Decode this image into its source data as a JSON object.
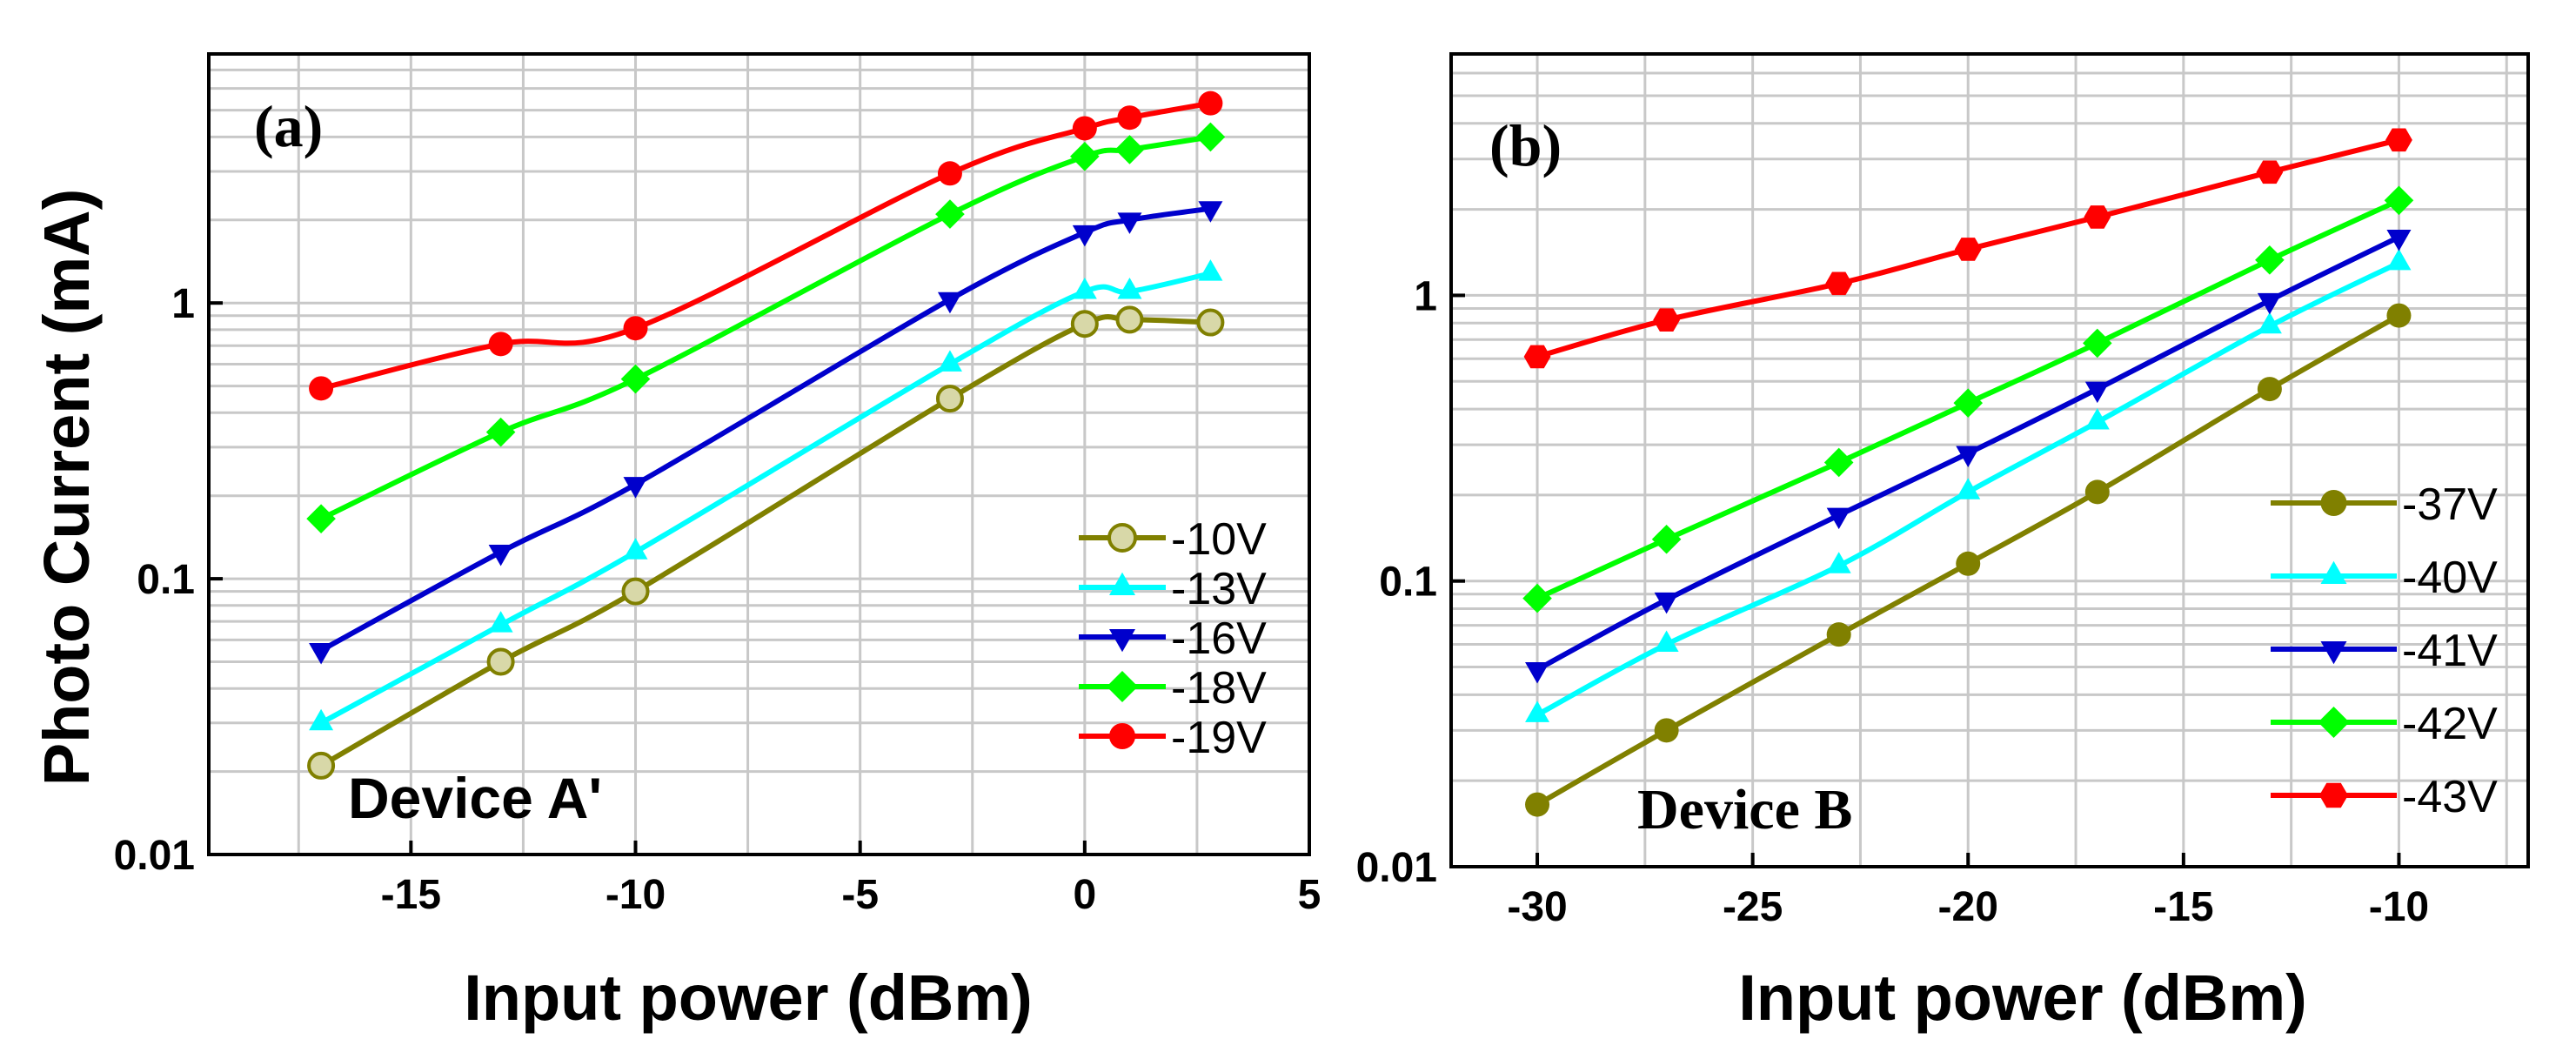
{
  "y_axis_label": "Photo Current (mA)",
  "chart_data": [
    {
      "type": "line",
      "panel_label": "(a)",
      "annotation": "Device A'",
      "xlabel": "Input power (dBm)",
      "ylabel": "Photo Current (mA)",
      "yscale": "log",
      "xlim": [
        -19.5,
        5
      ],
      "ylim": [
        0.01,
        8
      ],
      "xticks": [
        -15,
        -10,
        -5,
        0,
        5
      ],
      "xtick_labels": [
        "-15",
        "-10",
        "-5",
        "0",
        "5"
      ],
      "yticks": [
        0.01,
        0.1,
        1
      ],
      "ytick_labels": [
        "0.01",
        "0.1",
        "1"
      ],
      "grid": true,
      "legend_position": "lower-right",
      "series": [
        {
          "name": "-10V",
          "color": "#808000",
          "marker": "circle-open",
          "x": [
            -17,
            -13,
            -10,
            -3,
            0,
            1,
            2.8
          ],
          "y": [
            0.021,
            0.05,
            0.09,
            0.45,
            0.84,
            0.87,
            0.85
          ]
        },
        {
          "name": "-13V",
          "color": "#00FFFF",
          "marker": "triangle-up",
          "x": [
            -17,
            -13,
            -10,
            -3,
            0,
            1,
            2.8
          ],
          "y": [
            0.03,
            0.068,
            0.125,
            0.6,
            1.1,
            1.1,
            1.28
          ]
        },
        {
          "name": "-16V",
          "color": "#0000CC",
          "marker": "triangle-down",
          "x": [
            -17,
            -13,
            -10,
            -3,
            0,
            1,
            2.8
          ],
          "y": [
            0.055,
            0.125,
            0.22,
            1.03,
            1.8,
            2.0,
            2.2
          ]
        },
        {
          "name": "-18V",
          "color": "#00FF00",
          "marker": "diamond",
          "x": [
            -17,
            -13,
            -10,
            -3,
            0,
            1,
            2.8
          ],
          "y": [
            0.165,
            0.34,
            0.53,
            2.1,
            3.4,
            3.6,
            4.0
          ]
        },
        {
          "name": "-19V",
          "color": "#FF0000",
          "marker": "circle",
          "x": [
            -17,
            -13,
            -10,
            -3,
            0,
            1,
            2.8
          ],
          "y": [
            0.49,
            0.71,
            0.81,
            2.95,
            4.3,
            4.7,
            5.3
          ]
        }
      ]
    },
    {
      "type": "line",
      "panel_label": "(b)",
      "annotation": "Device B",
      "xlabel": "Input power (dBm)",
      "ylabel": "Photo Current (mA)",
      "yscale": "log",
      "xlim": [
        -32,
        -7
      ],
      "ylim": [
        0.01,
        7
      ],
      "xticks": [
        -30,
        -25,
        -20,
        -15,
        -10
      ],
      "xtick_labels": [
        "-30",
        "-25",
        "-20",
        "-15",
        "-10"
      ],
      "yticks": [
        0.01,
        0.1,
        1
      ],
      "ytick_labels": [
        "0.01",
        "0.1",
        "1"
      ],
      "grid": true,
      "legend_position": "lower-right",
      "series": [
        {
          "name": "-37V",
          "color": "#808000",
          "marker": "circle",
          "x": [
            -30,
            -27,
            -23,
            -20,
            -17,
            -13,
            -10
          ],
          "y": [
            0.0165,
            0.03,
            0.065,
            0.115,
            0.205,
            0.47,
            0.85
          ]
        },
        {
          "name": "-40V",
          "color": "#00FFFF",
          "marker": "triangle-up",
          "x": [
            -30,
            -27,
            -23,
            -20,
            -17,
            -13,
            -10
          ],
          "y": [
            0.034,
            0.06,
            0.113,
            0.205,
            0.36,
            0.78,
            1.3
          ]
        },
        {
          "name": "-41V",
          "color": "#0000CC",
          "marker": "triangle-down",
          "x": [
            -30,
            -27,
            -23,
            -20,
            -17,
            -13,
            -10
          ],
          "y": [
            0.049,
            0.086,
            0.17,
            0.28,
            0.47,
            0.96,
            1.6
          ]
        },
        {
          "name": "-42V",
          "color": "#00FF00",
          "marker": "diamond",
          "x": [
            -30,
            -27,
            -23,
            -20,
            -17,
            -13,
            -10
          ],
          "y": [
            0.087,
            0.14,
            0.26,
            0.42,
            0.68,
            1.33,
            2.15
          ]
        },
        {
          "name": "-43V",
          "color": "#FF0000",
          "marker": "hexagon",
          "x": [
            -30,
            -27,
            -23,
            -20,
            -17,
            -13,
            -10
          ],
          "y": [
            0.61,
            0.82,
            1.1,
            1.45,
            1.88,
            2.7,
            3.5
          ]
        }
      ]
    }
  ]
}
